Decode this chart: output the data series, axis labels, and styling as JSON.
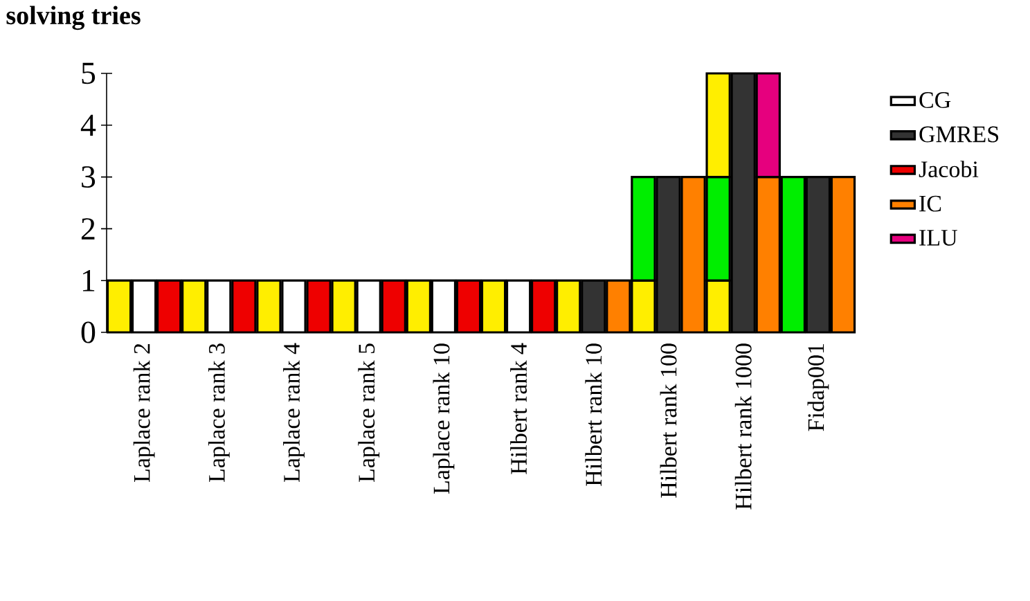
{
  "chart_data": {
    "type": "bar",
    "title": "solving tries",
    "stacked": true,
    "categories": [
      null,
      "Laplace rank 2",
      null,
      null,
      "Laplace rank 3",
      null,
      null,
      "Laplace rank 4",
      null,
      null,
      "Laplace rank 5",
      null,
      null,
      "Laplace rank 10",
      null,
      null,
      "Hilbert rank 4",
      null,
      null,
      "Hilbert rank 10",
      null,
      null,
      "Hilbert rank 100",
      null,
      null,
      "Hilbert rank 1000",
      null,
      null,
      "Fidap001",
      null
    ],
    "ylim": [
      0,
      5
    ],
    "yticks": [
      0,
      1,
      2,
      3,
      4,
      5
    ],
    "legend": "right",
    "series": [
      {
        "color": "#ffee00",
        "values": [
          1,
          null,
          null,
          1,
          null,
          null,
          1,
          null,
          null,
          1,
          null,
          null,
          1,
          null,
          null,
          1,
          null,
          null,
          1,
          null,
          null,
          1,
          null,
          null,
          1,
          null,
          null,
          null,
          null,
          null
        ]
      },
      {
        "color": "#00ee00",
        "values": [
          null,
          null,
          null,
          null,
          null,
          null,
          null,
          null,
          null,
          null,
          null,
          null,
          null,
          null,
          null,
          null,
          null,
          null,
          null,
          null,
          null,
          2,
          null,
          null,
          2,
          null,
          null,
          3,
          null,
          null
        ]
      },
      {
        "color": "#ffee00",
        "values": [
          null,
          null,
          null,
          null,
          null,
          null,
          null,
          null,
          null,
          null,
          null,
          null,
          null,
          null,
          null,
          null,
          null,
          null,
          null,
          null,
          null,
          null,
          null,
          null,
          2,
          null,
          null,
          null,
          null,
          null
        ]
      },
      {
        "name": "CG",
        "color": "#ffffff",
        "values": [
          null,
          1,
          null,
          null,
          1,
          null,
          null,
          1,
          null,
          null,
          1,
          null,
          null,
          1,
          null,
          null,
          1,
          null,
          null,
          null,
          null,
          null,
          null,
          null,
          null,
          null,
          null,
          null,
          null,
          null
        ]
      },
      {
        "name": "GMRES",
        "color": "#333333",
        "values": [
          null,
          null,
          null,
          null,
          null,
          null,
          null,
          null,
          null,
          null,
          null,
          null,
          null,
          null,
          null,
          null,
          null,
          null,
          null,
          1,
          null,
          null,
          3,
          null,
          null,
          5,
          null,
          null,
          3,
          null
        ]
      },
      {
        "name": "Jacobi",
        "color": "#ee0000",
        "values": [
          null,
          null,
          1,
          null,
          null,
          1,
          null,
          null,
          1,
          null,
          null,
          1,
          null,
          null,
          1,
          null,
          null,
          1,
          null,
          null,
          null,
          null,
          null,
          null,
          null,
          null,
          null,
          null,
          null,
          null
        ]
      },
      {
        "name": "IC",
        "color": "#ff8000",
        "values": [
          null,
          null,
          null,
          null,
          null,
          null,
          null,
          null,
          null,
          null,
          null,
          null,
          null,
          null,
          null,
          null,
          null,
          null,
          null,
          null,
          1,
          null,
          null,
          3,
          null,
          null,
          3,
          null,
          null,
          3
        ]
      },
      {
        "name": "ILU",
        "color": "#e6007e",
        "values": [
          null,
          null,
          null,
          null,
          null,
          null,
          null,
          null,
          null,
          null,
          null,
          null,
          null,
          null,
          null,
          null,
          null,
          null,
          null,
          null,
          null,
          null,
          null,
          null,
          null,
          null,
          2,
          null,
          null,
          null
        ]
      }
    ]
  }
}
